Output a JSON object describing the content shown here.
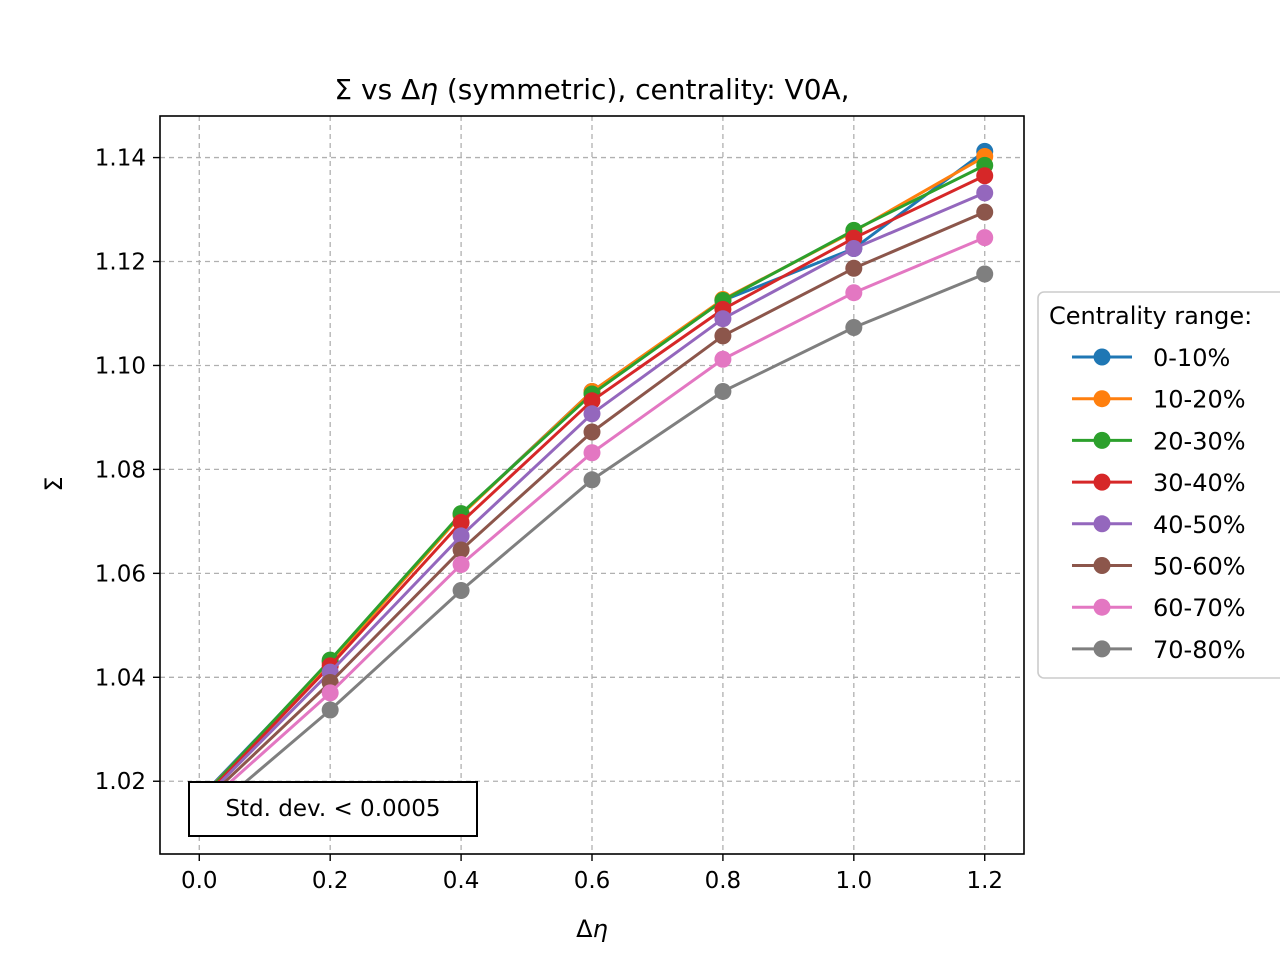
{
  "chart_data": {
    "type": "line",
    "title": "Σ vs Δη (symmetric), centrality: V0A,",
    "title_parts": [
      "Σ vs Δ",
      "η",
      " (symmetric), centrality: V0A,"
    ],
    "xlabel": "Δη",
    "xlabel_parts": [
      "Δ",
      "η"
    ],
    "ylabel": "Σ",
    "xlim": [
      -0.06,
      1.26
    ],
    "ylim": [
      1.006,
      1.148
    ],
    "x": [
      0.0,
      0.2,
      0.4,
      0.6,
      0.8,
      1.0,
      1.2
    ],
    "xticks": [
      0.0,
      0.2,
      0.4,
      0.6,
      0.8,
      1.0,
      1.2
    ],
    "xtick_labels": [
      "0.0",
      "0.2",
      "0.4",
      "0.6",
      "0.8",
      "1.0",
      "1.2"
    ],
    "yticks": [
      1.02,
      1.04,
      1.06,
      1.08,
      1.1,
      1.12,
      1.14
    ],
    "ytick_labels": [
      "1.02",
      "1.04",
      "1.06",
      "1.08",
      "1.10",
      "1.12",
      "1.14"
    ],
    "grid": true,
    "legend_title": "Centrality range:",
    "legend_placement": "outside-right",
    "annotation": "Std. dev. < 0.0005",
    "annotation_placement": "bottom-left",
    "series": [
      {
        "name": "0-10%",
        "color": "#1f77b4",
        "values": [
          1.0167,
          1.043,
          1.0713,
          1.095,
          1.1125,
          1.1225,
          1.1412
        ]
      },
      {
        "name": "10-20%",
        "color": "#ff7f0e",
        "values": [
          1.0165,
          1.0428,
          1.0712,
          1.095,
          1.1127,
          1.1258,
          1.1402
        ]
      },
      {
        "name": "20-30%",
        "color": "#2ca02c",
        "values": [
          1.0163,
          1.0433,
          1.0715,
          1.0945,
          1.1125,
          1.126,
          1.1385
        ]
      },
      {
        "name": "30-40%",
        "color": "#d62728",
        "values": [
          1.016,
          1.0422,
          1.0698,
          1.0932,
          1.1108,
          1.1245,
          1.1365
        ]
      },
      {
        "name": "40-50%",
        "color": "#9467bd",
        "values": [
          1.0157,
          1.041,
          1.0672,
          1.0907,
          1.109,
          1.1225,
          1.1332
        ]
      },
      {
        "name": "50-60%",
        "color": "#8c564b",
        "values": [
          1.0152,
          1.039,
          1.0645,
          1.0872,
          1.1057,
          1.1187,
          1.1295
        ]
      },
      {
        "name": "60-70%",
        "color": "#e377c2",
        "values": [
          1.0145,
          1.037,
          1.0617,
          1.0832,
          1.1012,
          1.114,
          1.1246
        ]
      },
      {
        "name": "70-80%",
        "color": "#7f7f7f",
        "values": [
          1.0123,
          1.0337,
          1.0567,
          1.078,
          1.095,
          1.1073,
          1.1176
        ]
      }
    ]
  }
}
